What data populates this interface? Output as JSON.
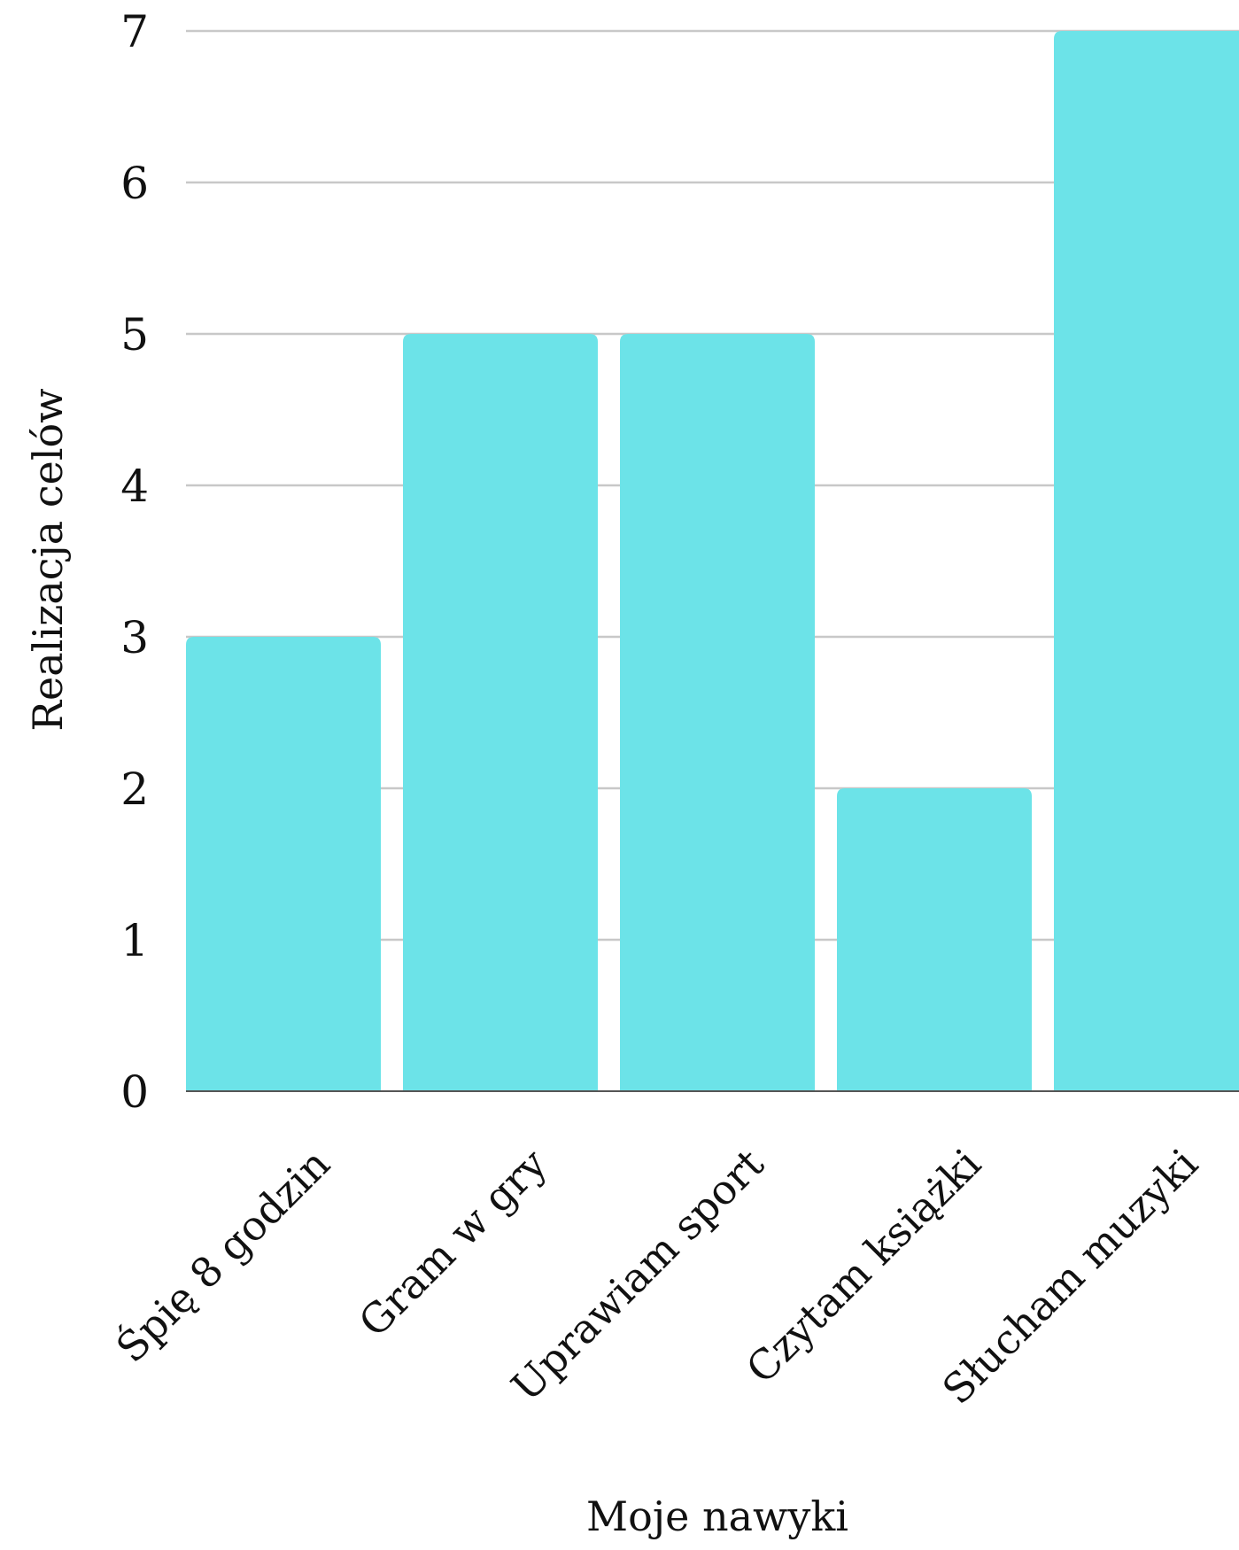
{
  "chart_data": {
    "type": "bar",
    "title": "",
    "xlabel": "Moje nawyki",
    "ylabel": "Realizacja celów",
    "categories": [
      "Śpię 8 godzin",
      "Gram w gry",
      "Uprawiam sport",
      "Czytam książki",
      "Słucham muzyki"
    ],
    "values": [
      3,
      5,
      5,
      2,
      7
    ],
    "ylim": [
      0,
      7
    ],
    "yticks": [
      "0",
      "1",
      "2",
      "3",
      "4",
      "5",
      "6",
      "7"
    ],
    "grid": true,
    "legend": "none",
    "colors": {
      "bar": "#6ce3e8",
      "grid": "#c8c8c8",
      "axis": "#555555"
    }
  }
}
